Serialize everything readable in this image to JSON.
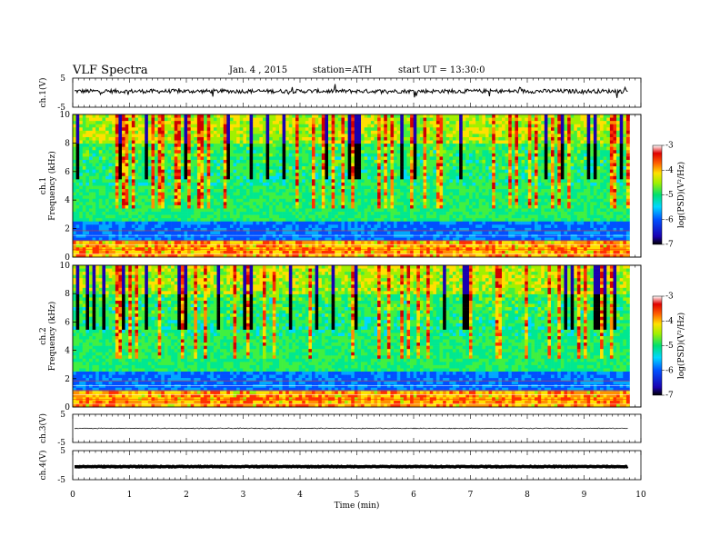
{
  "header": {
    "title": "VLF  Spectra",
    "date": "Jan. 4  , 2015",
    "station": "station=ATH",
    "start": "start  UT  =   13:30:0"
  },
  "chart_data": [
    {
      "type": "line",
      "ylabel": "ch.1(V)",
      "ylim": [
        -5,
        5
      ],
      "yticks": [
        "5",
        "-5"
      ],
      "baseline": 0.5,
      "noise": 0.7
    },
    {
      "type": "heatmap",
      "ylabel": "ch.1",
      "ylabel2": "Frequency (kHz)",
      "ylim": [
        0,
        10
      ],
      "yticks": [
        "0",
        "2",
        "4",
        "6",
        "8",
        "10"
      ],
      "colorbar": {
        "label": "log(PSD)(V²/Hz)",
        "range": [
          -7,
          -3
        ],
        "ticks": [
          "-3",
          "-4",
          "-5",
          "-6",
          "-7"
        ]
      }
    },
    {
      "type": "heatmap",
      "ylabel": "ch.2",
      "ylabel2": "Frequency (kHz)",
      "ylim": [
        0,
        10
      ],
      "yticks": [
        "0",
        "2",
        "4",
        "6",
        "8",
        "10"
      ],
      "colorbar": {
        "label": "log(PSD)(V²/Hz)",
        "range": [
          -7,
          -3
        ],
        "ticks": [
          "-3",
          "-4",
          "-5",
          "-6",
          "-7"
        ]
      }
    },
    {
      "type": "line",
      "ylabel": "ch.3(V)",
      "ylim": [
        -5,
        5
      ],
      "yticks": [
        "5",
        "-5"
      ],
      "baseline": 0,
      "noise": 0.15
    },
    {
      "type": "line",
      "ylabel": "ch.4(V)",
      "ylim": [
        -5,
        5
      ],
      "yticks": [
        "5",
        "-5"
      ],
      "baseline": -0.5,
      "noise": 0.12
    }
  ],
  "x_axis": {
    "label": "Time  (min)",
    "range": [
      0,
      10
    ],
    "data_end": 9.8,
    "ticks": [
      "0",
      "1",
      "2",
      "3",
      "4",
      "5",
      "6",
      "7",
      "8",
      "9",
      "10"
    ]
  }
}
